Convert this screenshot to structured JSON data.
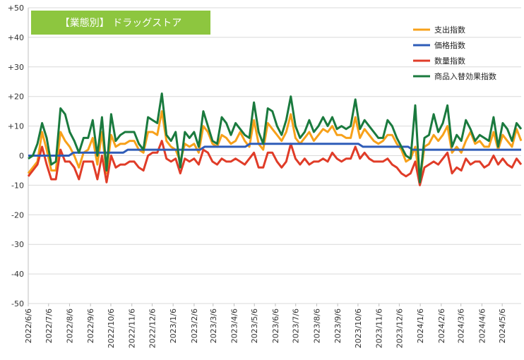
{
  "chart_data": {
    "type": "line",
    "title": "【業態別】 ドラッグストア",
    "title_box_color": "#8dc63f",
    "xlabel": "",
    "ylabel": "",
    "ylim": [
      -50,
      50
    ],
    "yticks": [
      50,
      40,
      30,
      20,
      10,
      0,
      -10,
      -20,
      -30,
      -40,
      -50
    ],
    "ytick_labels": [
      "+50",
      "+40",
      "+30",
      "+20",
      "+10",
      "0",
      "-10",
      "-20",
      "-30",
      "-40",
      "-50"
    ],
    "x_start": "2022-06-06",
    "x_end": "2024-06-03",
    "xtick_labels": [
      "2022/6/6",
      "2022/7/6",
      "2022/8/6",
      "2022/9/6",
      "2022/10/6",
      "2022/11/6",
      "2022/12/6",
      "2023/1/6",
      "2023/2/6",
      "2023/3/6",
      "2023/4/6",
      "2023/5/6",
      "2023/6/6",
      "2023/7/6",
      "2023/8/6",
      "2023/9/6",
      "2023/10/6",
      "2023/11/6",
      "2023/12/6",
      "2024/1/6",
      "2024/2/6",
      "2024/3/6",
      "2024/4/6",
      "2024/5/6"
    ],
    "grid": true,
    "legend_position": "top-right",
    "series": [
      {
        "name": "支出指数",
        "color": "#f7a11a",
        "values": [
          -6,
          -4,
          -2,
          8,
          2,
          -5,
          -5,
          8,
          5,
          3,
          0,
          -4,
          1,
          2,
          6,
          -3,
          8,
          -6,
          7,
          3,
          4,
          4,
          5,
          5,
          2,
          1,
          8,
          8,
          7,
          15,
          5,
          3,
          2,
          -2,
          4,
          3,
          4,
          1,
          10,
          8,
          4,
          3,
          7,
          6,
          4,
          5,
          8,
          5,
          3,
          12,
          4,
          2,
          11,
          9,
          7,
          5,
          8,
          14,
          6,
          4,
          6,
          8,
          5,
          7,
          9,
          8,
          10,
          7,
          7,
          6,
          6,
          13,
          6,
          9,
          7,
          5,
          4,
          5,
          7,
          7,
          4,
          2,
          -2,
          -1,
          3,
          -9,
          3,
          4,
          7,
          5,
          7,
          10,
          1,
          3,
          1,
          5,
          8,
          4,
          5,
          3,
          3,
          8,
          2,
          7,
          5,
          3,
          9,
          5
        ]
      },
      {
        "name": "価格指数",
        "color": "#2e5cb8",
        "values": [
          0,
          0,
          0,
          0,
          0,
          0,
          0,
          0,
          0,
          0,
          1,
          1,
          1,
          1,
          1,
          1,
          1,
          1,
          1,
          1,
          1,
          1,
          2,
          2,
          2,
          2,
          2,
          2,
          2,
          2,
          2,
          2,
          2,
          2,
          2,
          2,
          2,
          2,
          2,
          3,
          3,
          3,
          3,
          3,
          3,
          3,
          3,
          3,
          3,
          4,
          4,
          4,
          4,
          4,
          4,
          4,
          4,
          4,
          4,
          4,
          4,
          4,
          4,
          4,
          4,
          4,
          4,
          4,
          4,
          4,
          4,
          4,
          4,
          4,
          3,
          3,
          3,
          3,
          3,
          3,
          3,
          3,
          3,
          3,
          3,
          2,
          2,
          2,
          2,
          2,
          2,
          2,
          2,
          2,
          2,
          2,
          2,
          2,
          2,
          2,
          2,
          2,
          2,
          2,
          2,
          2,
          2,
          2,
          2,
          2
        ]
      },
      {
        "name": "数量指数",
        "color": "#e03c28",
        "values": [
          -7,
          -5,
          -3,
          3,
          -3,
          -8,
          -8,
          2,
          -2,
          -2,
          -4,
          -8,
          -2,
          -2,
          -2,
          -8,
          0,
          -9,
          0,
          -4,
          -3,
          -3,
          -2,
          -2,
          -4,
          -5,
          0,
          1,
          1,
          5,
          -1,
          -2,
          -1,
          -6,
          -1,
          -2,
          -1,
          -3,
          2,
          1,
          -2,
          -3,
          -1,
          -2,
          -2,
          -1,
          -2,
          -3,
          -1,
          1,
          -4,
          -4,
          1,
          1,
          -2,
          -4,
          -2,
          4,
          -1,
          -3,
          -1,
          -3,
          -2,
          -2,
          -1,
          -2,
          1,
          -1,
          -2,
          -1,
          -1,
          3,
          -1,
          1,
          -1,
          -2,
          -2,
          -2,
          -1,
          -3,
          -4,
          -6,
          -7,
          -6,
          -2,
          -10,
          -4,
          -3,
          -2,
          -3,
          -1,
          1,
          -6,
          -4,
          -5,
          -1,
          -3,
          -2,
          -2,
          -4,
          -3,
          0,
          -3,
          -1,
          -3,
          -4,
          -1,
          -3
        ]
      },
      {
        "name": "商品入替効果指数",
        "color": "#1a7a3e",
        "values": [
          -1,
          0,
          4,
          11,
          6,
          -3,
          -2,
          16,
          14,
          8,
          5,
          1,
          6,
          6,
          12,
          0,
          13,
          -5,
          14,
          5,
          7,
          8,
          8,
          8,
          4,
          2,
          13,
          12,
          11,
          21,
          7,
          5,
          8,
          -4,
          8,
          6,
          8,
          3,
          15,
          10,
          5,
          4,
          13,
          11,
          7,
          11,
          9,
          7,
          6,
          18,
          8,
          4,
          16,
          15,
          10,
          7,
          12,
          20,
          10,
          6,
          8,
          12,
          8,
          10,
          13,
          10,
          13,
          9,
          10,
          9,
          10,
          19,
          9,
          12,
          10,
          8,
          6,
          6,
          12,
          10,
          6,
          3,
          0,
          -1,
          17,
          -9,
          6,
          7,
          14,
          8,
          11,
          17,
          3,
          7,
          5,
          12,
          9,
          5,
          7,
          6,
          5,
          13,
          3,
          11,
          9,
          5,
          11,
          9
        ]
      }
    ]
  }
}
